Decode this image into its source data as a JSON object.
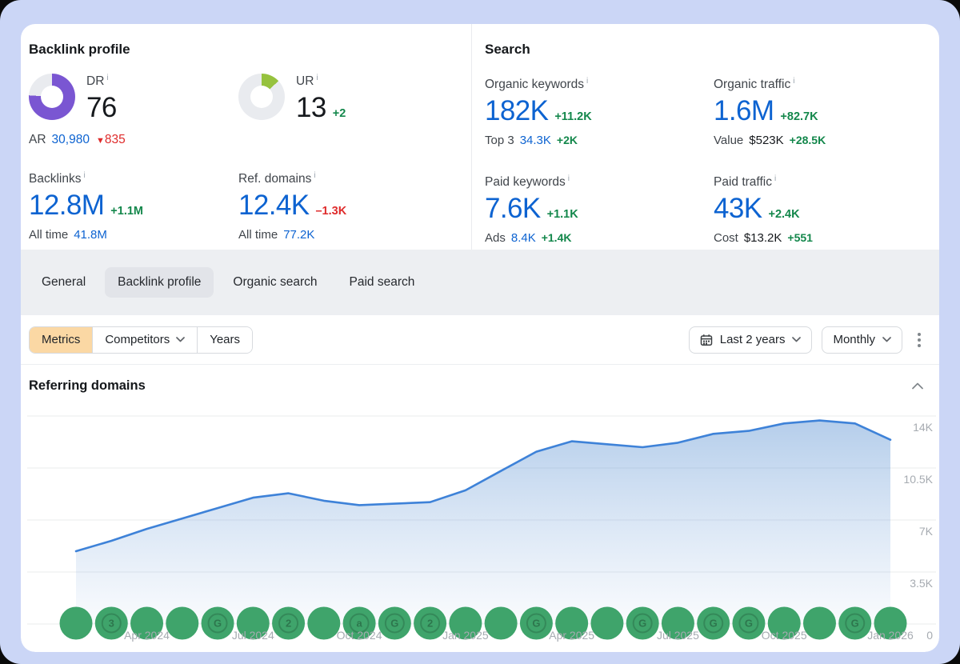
{
  "icons": {
    "info": "i",
    "triangle_down": "▼"
  },
  "colors": {
    "accent_blue": "#0d63d1",
    "green": "#13874b",
    "red": "#df2b2b",
    "dr_donut": "#7a56d2",
    "ur_donut": "#96c23e",
    "chart_line": "#3e82d8",
    "event_marker": "#3fa46b",
    "metrics_active_bg": "#fbd8a4",
    "frame": "#cbd6f6"
  },
  "backlink_profile": {
    "title": "Backlink profile",
    "dr": {
      "label": "DR",
      "value": "76",
      "donut_pct": 76,
      "donut_color": "#7a56d2"
    },
    "ar": {
      "label": "AR",
      "value": "30,980",
      "delta": "835"
    },
    "ur": {
      "label": "UR",
      "value": "13",
      "delta": "+2",
      "donut_pct": 13,
      "donut_color": "#96c23e"
    },
    "backlinks": {
      "label": "Backlinks",
      "value": "12.8M",
      "delta": "+1.1M",
      "sub_label": "All time",
      "sub_value": "41.8M"
    },
    "ref_domains": {
      "label": "Ref. domains",
      "value": "12.4K",
      "delta": "–1.3K",
      "sub_label": "All time",
      "sub_value": "77.2K"
    }
  },
  "search": {
    "title": "Search",
    "organic_keywords": {
      "label": "Organic keywords",
      "value": "182K",
      "delta": "+11.2K",
      "sub_label": "Top 3",
      "sub_value": "34.3K",
      "sub_delta": "+2K"
    },
    "organic_traffic": {
      "label": "Organic traffic",
      "value": "1.6M",
      "delta": "+82.7K",
      "sub_label": "Value",
      "sub_value": "$523K",
      "sub_delta": "+28.5K"
    },
    "paid_keywords": {
      "label": "Paid keywords",
      "value": "7.6K",
      "delta": "+1.1K",
      "sub_label": "Ads",
      "sub_value": "8.4K",
      "sub_delta": "+1.4K"
    },
    "paid_traffic": {
      "label": "Paid traffic",
      "value": "43K",
      "delta": "+2.4K",
      "sub_label": "Cost",
      "sub_value": "$13.2K",
      "sub_delta": "+551"
    }
  },
  "tabs": {
    "items": [
      {
        "label": "General",
        "active": false
      },
      {
        "label": "Backlink profile",
        "active": true
      },
      {
        "label": "Organic search",
        "active": false
      },
      {
        "label": "Paid search",
        "active": false
      }
    ]
  },
  "toolbar": {
    "metrics": "Metrics",
    "competitors": "Competitors",
    "years": "Years",
    "range": "Last 2 years",
    "granularity": "Monthly"
  },
  "section": {
    "title": "Referring domains"
  },
  "chart_data": {
    "type": "area",
    "title": "Referring domains",
    "x": [
      "Feb 2024",
      "Mar 2024",
      "Apr 2024",
      "May 2024",
      "Jun 2024",
      "Jul 2024",
      "Aug 2024",
      "Sep 2024",
      "Oct 2024",
      "Nov 2024",
      "Dec 2024",
      "Jan 2025",
      "Feb 2025",
      "Mar 2025",
      "Apr 2025",
      "May 2025",
      "Jun 2025",
      "Jul 2025",
      "Aug 2025",
      "Sep 2025",
      "Oct 2025",
      "Nov 2025",
      "Dec 2025",
      "Jan 2026"
    ],
    "values": [
      4900,
      5600,
      6400,
      7100,
      7800,
      8500,
      8800,
      8300,
      8000,
      8100,
      8200,
      9000,
      10300,
      11600,
      12300,
      12100,
      11900,
      12200,
      12800,
      13000,
      13500,
      13700,
      13500,
      12400
    ],
    "ylim": [
      0,
      15350
    ],
    "grid": true,
    "legend": "none",
    "y_ticks": [
      {
        "value": 14000,
        "label": "14K"
      },
      {
        "value": 10500,
        "label": "10.5K"
      },
      {
        "value": 7000,
        "label": "7K"
      },
      {
        "value": 3500,
        "label": "3.5K"
      },
      {
        "value": 0,
        "label": "0"
      }
    ],
    "x_ticks": [
      {
        "index": 2,
        "label": "Apr 2024"
      },
      {
        "index": 5,
        "label": "Jul 2024"
      },
      {
        "index": 8,
        "label": "Oct 2024"
      },
      {
        "index": 11,
        "label": "Jan 2025"
      },
      {
        "index": 14,
        "label": "Apr 2025"
      },
      {
        "index": 17,
        "label": "Jul 2025"
      },
      {
        "index": 20,
        "label": "Oct 2025"
      },
      {
        "index": 23,
        "label": "Jan 2026"
      }
    ],
    "events": [
      "",
      "3",
      "",
      "",
      "G",
      "",
      "2",
      "",
      "a",
      "G",
      "2",
      "",
      "",
      "G",
      "",
      "",
      "G",
      "",
      "G",
      "G",
      "",
      "",
      "G",
      ""
    ]
  }
}
